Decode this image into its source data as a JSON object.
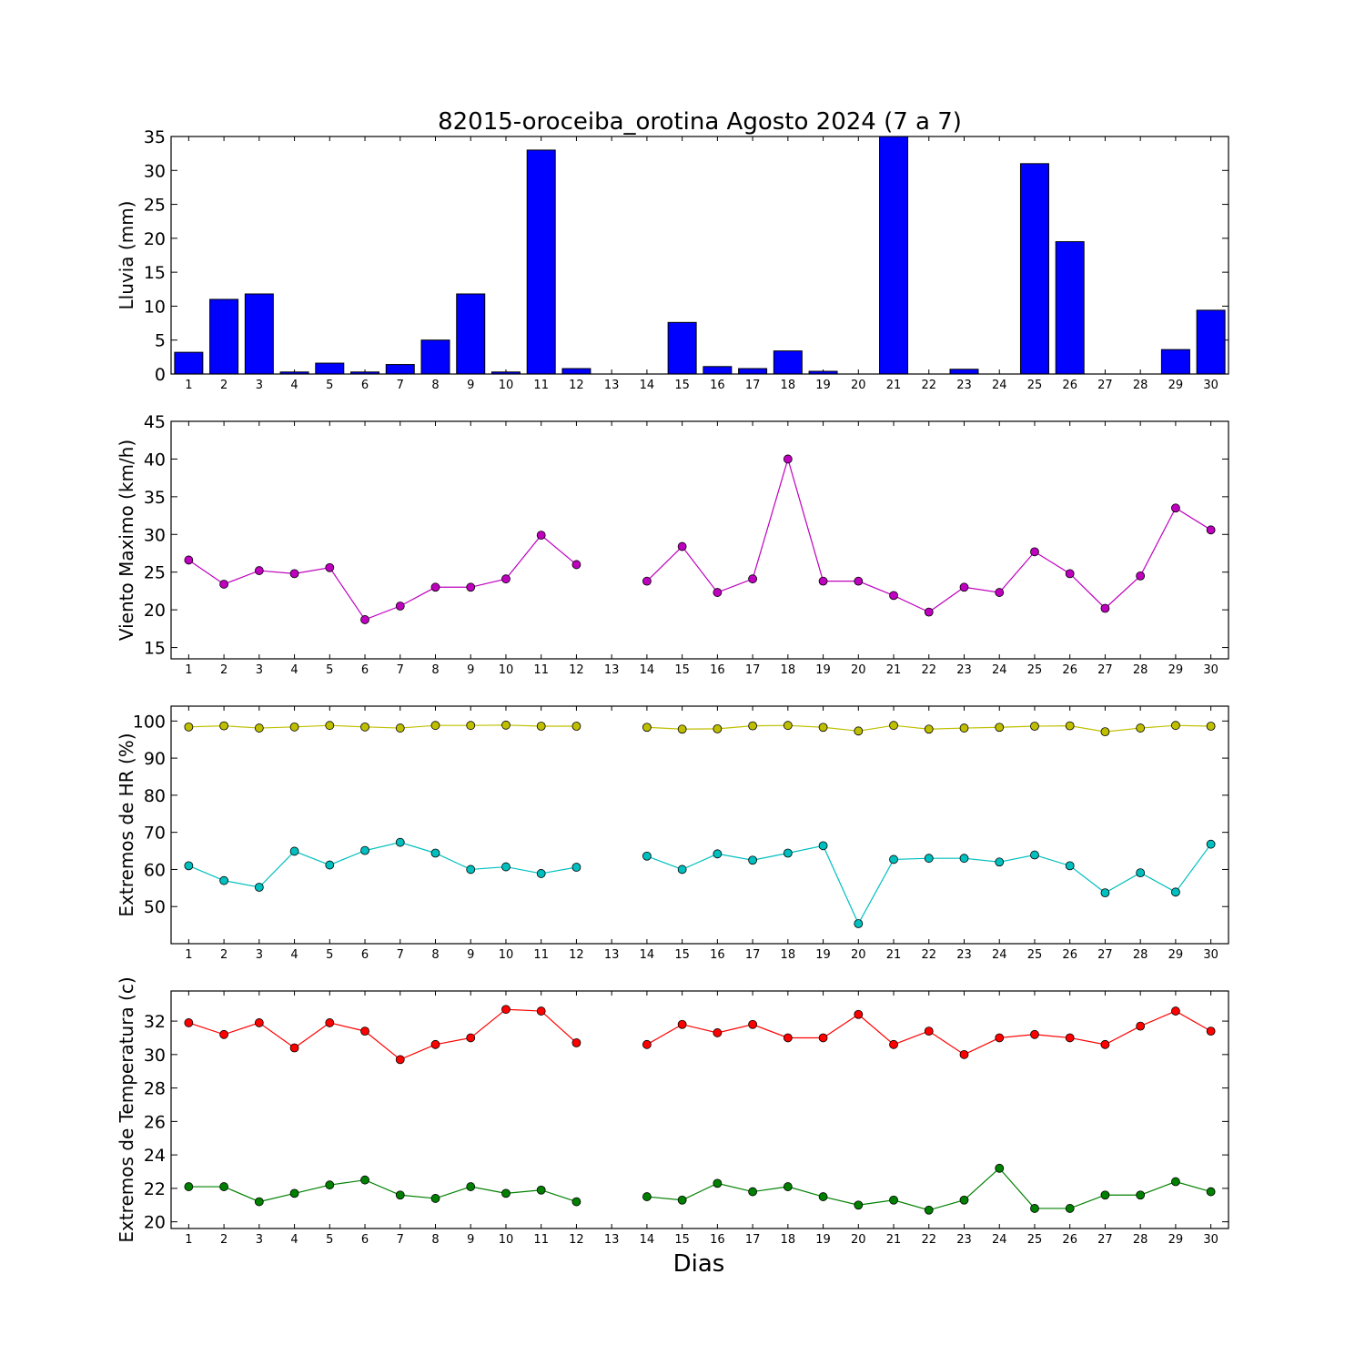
{
  "figure": {
    "title": "82015-oroceiba_orotina Agosto 2024  (7 a 7)",
    "xlabel": "Dias"
  },
  "chart_data": [
    {
      "type": "bar",
      "ylabel": "Lluvia (mm)",
      "ylim": [
        0,
        35
      ],
      "yticks": [
        0,
        5,
        10,
        15,
        20,
        25,
        30,
        35
      ],
      "categories": [
        "1",
        "2",
        "3",
        "4",
        "5",
        "6",
        "7",
        "8",
        "9",
        "10",
        "11",
        "12",
        "13",
        "14",
        "15",
        "16",
        "17",
        "18",
        "19",
        "20",
        "21",
        "22",
        "23",
        "24",
        "25",
        "26",
        "27",
        "28",
        "29",
        "30"
      ],
      "series": [
        {
          "color": "#0000ff",
          "values": [
            3.2,
            11.0,
            11.8,
            0.3,
            1.6,
            0.3,
            1.4,
            5.0,
            11.8,
            0.3,
            33.0,
            0.8,
            0.0,
            0.0,
            7.6,
            1.1,
            0.8,
            3.4,
            0.4,
            0.0,
            35.0,
            0.0,
            0.7,
            0.0,
            31.0,
            19.5,
            0.0,
            0.0,
            3.6,
            9.4
          ]
        }
      ]
    },
    {
      "type": "line",
      "ylabel": "Viento Maximo (km/h)",
      "ylim": [
        13.5,
        45
      ],
      "yticks": [
        15,
        20,
        25,
        30,
        35,
        40,
        45
      ],
      "categories": [
        "1",
        "2",
        "3",
        "4",
        "5",
        "6",
        "7",
        "8",
        "9",
        "10",
        "11",
        "12",
        "13",
        "14",
        "15",
        "16",
        "17",
        "18",
        "19",
        "20",
        "21",
        "22",
        "23",
        "24",
        "25",
        "26",
        "27",
        "28",
        "29",
        "30"
      ],
      "series": [
        {
          "color": "#bf00bf",
          "values": [
            26.6,
            23.4,
            25.2,
            24.8,
            25.6,
            18.7,
            20.5,
            23.0,
            23.0,
            24.1,
            29.9,
            26.0,
            null,
            23.8,
            28.4,
            22.3,
            24.1,
            40.0,
            23.8,
            23.8,
            21.9,
            19.7,
            23.0,
            22.3,
            27.7,
            24.8,
            20.2,
            24.5,
            33.5,
            30.6
          ]
        }
      ]
    },
    {
      "type": "line",
      "ylabel": "Extremos de HR (%)",
      "ylim": [
        40,
        104
      ],
      "yticks": [
        50,
        60,
        70,
        80,
        90,
        100
      ],
      "categories": [
        "1",
        "2",
        "3",
        "4",
        "5",
        "6",
        "7",
        "8",
        "9",
        "10",
        "11",
        "12",
        "13",
        "14",
        "15",
        "16",
        "17",
        "18",
        "19",
        "20",
        "21",
        "22",
        "23",
        "24",
        "25",
        "26",
        "27",
        "28",
        "29",
        "30"
      ],
      "series": [
        {
          "color": "#bfbf00",
          "values": [
            98.4,
            98.7,
            98.1,
            98.4,
            98.8,
            98.4,
            98.1,
            98.8,
            98.8,
            98.9,
            98.6,
            98.6,
            null,
            98.3,
            97.8,
            97.9,
            98.7,
            98.8,
            98.3,
            97.3,
            98.8,
            97.8,
            98.1,
            98.3,
            98.6,
            98.7,
            97.1,
            98.1,
            98.8,
            98.6
          ]
        },
        {
          "color": "#00bfbf",
          "values": [
            61.0,
            57.0,
            55.2,
            64.9,
            61.2,
            65.1,
            67.3,
            64.4,
            60.0,
            60.7,
            58.9,
            60.6,
            null,
            63.6,
            60.0,
            64.2,
            62.5,
            64.4,
            66.4,
            45.4,
            62.7,
            63.0,
            63.0,
            62.0,
            63.9,
            61.0,
            53.7,
            59.1,
            53.9,
            66.8
          ]
        }
      ]
    },
    {
      "type": "line",
      "ylabel": "Extremos de Temperatura (c)",
      "ylim": [
        19.6,
        33.8
      ],
      "yticks": [
        20,
        22,
        24,
        26,
        28,
        30,
        32
      ],
      "categories": [
        "1",
        "2",
        "3",
        "4",
        "5",
        "6",
        "7",
        "8",
        "9",
        "10",
        "11",
        "12",
        "13",
        "14",
        "15",
        "16",
        "17",
        "18",
        "19",
        "20",
        "21",
        "22",
        "23",
        "24",
        "25",
        "26",
        "27",
        "28",
        "29",
        "30"
      ],
      "series": [
        {
          "color": "#ff0000",
          "values": [
            31.9,
            31.2,
            31.9,
            30.4,
            31.9,
            31.4,
            29.7,
            30.6,
            31.0,
            32.7,
            32.6,
            30.7,
            null,
            30.6,
            31.8,
            31.3,
            31.8,
            31.0,
            31.0,
            32.4,
            30.6,
            31.4,
            30.0,
            31.0,
            31.2,
            31.0,
            30.6,
            31.7,
            32.6,
            31.4
          ]
        },
        {
          "color": "#008000",
          "values": [
            22.1,
            22.1,
            21.2,
            21.7,
            22.2,
            22.5,
            21.6,
            21.4,
            22.1,
            21.7,
            21.9,
            21.2,
            null,
            21.5,
            21.3,
            22.3,
            21.8,
            22.1,
            21.5,
            21.0,
            21.3,
            20.7,
            21.3,
            23.2,
            20.8,
            20.8,
            21.6,
            21.6,
            22.4,
            21.8
          ]
        }
      ]
    }
  ]
}
